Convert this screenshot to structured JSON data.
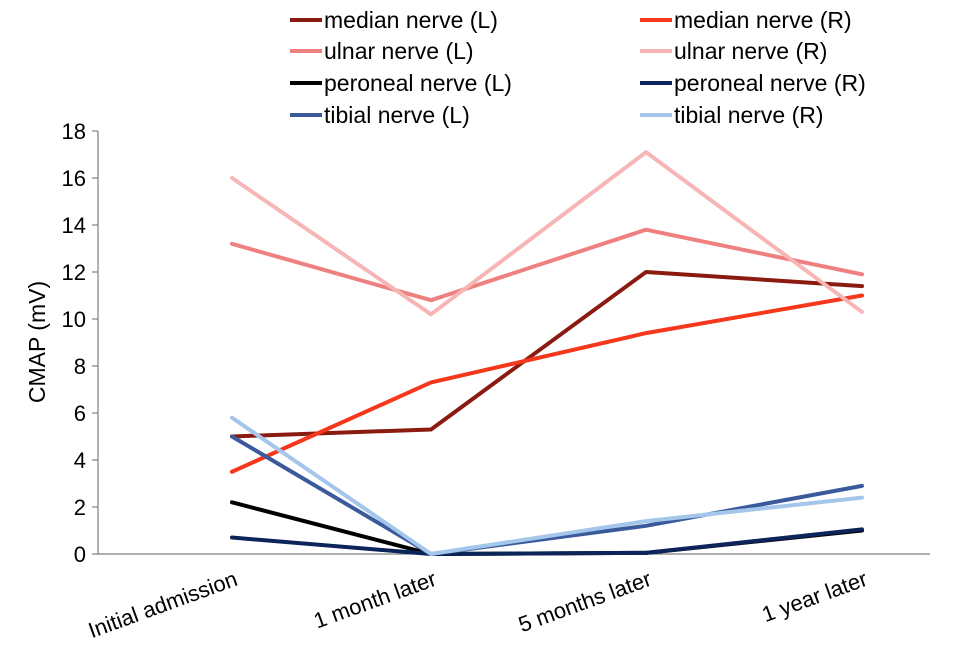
{
  "chart_data": {
    "type": "line",
    "title": "",
    "xlabel": "",
    "ylabel": "CMAP (mV)",
    "categories": [
      "Initial admission",
      "1 month later",
      "5 months later",
      "1 year later"
    ],
    "ylim": [
      0,
      18
    ],
    "yticks": [
      "0",
      "2",
      "4",
      "6",
      "8",
      "10",
      "12",
      "14",
      "16",
      "18"
    ],
    "grid": false,
    "legend_position": "top",
    "series": [
      {
        "name": "median nerve (L)",
        "color": "#8b1a10",
        "values": [
          5.0,
          5.3,
          12.0,
          11.4
        ]
      },
      {
        "name": "median nerve (R)",
        "color": "#f5371c",
        "values": [
          3.5,
          7.3,
          9.4,
          11.0
        ]
      },
      {
        "name": "ulnar nerve (L)",
        "color": "#ef8080",
        "values": [
          13.2,
          10.8,
          13.8,
          11.9
        ]
      },
      {
        "name": "ulnar nerve (R)",
        "color": "#f7b6b6",
        "values": [
          16.0,
          10.2,
          17.1,
          10.3
        ]
      },
      {
        "name": "peroneal nerve (L)",
        "color": "#000000",
        "values": [
          2.2,
          0.0,
          0.05,
          1.0
        ]
      },
      {
        "name": "peroneal nerve (R)",
        "color": "#0b2459",
        "values": [
          0.7,
          0.0,
          0.05,
          1.05
        ]
      },
      {
        "name": "tibial nerve (L)",
        "color": "#3a5a9c",
        "values": [
          5.0,
          0.0,
          1.2,
          2.9
        ]
      },
      {
        "name": "tibial nerve (R)",
        "color": "#a3c6ea",
        "values": [
          5.8,
          0.0,
          1.4,
          2.4
        ]
      }
    ]
  }
}
